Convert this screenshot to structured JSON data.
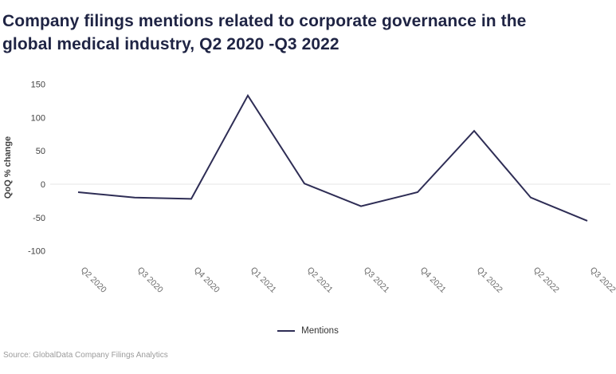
{
  "source": "Source: GlobalData Company Filings Analytics",
  "colors": {
    "line": "#2e2d55",
    "title": "#1f2444",
    "grid": "#e4e4e4",
    "axis_text": "#404040",
    "x_text": "#6b6b6b",
    "source_text": "#9b9b9b",
    "background": "#ffffff"
  },
  "chart_data": {
    "type": "line",
    "title": "Company filings mentions related to corporate governance in the global medical industry, Q2 2020 -Q3 2022",
    "categories": [
      "Q2 2020",
      "Q3 2020",
      "Q4 2020",
      "Q1 2021",
      "Q2 2021",
      "Q3 2021",
      "Q4 2021",
      "Q1 2022",
      "Q2 2022",
      "Q3 2022"
    ],
    "series": [
      {
        "name": "Mentions",
        "values": [
          -12,
          -20,
          -22,
          133,
          1,
          -33,
          -12,
          80,
          -20,
          -55
        ]
      }
    ],
    "xlabel": "",
    "ylabel": "QoQ % change",
    "yticks": [
      150,
      100,
      50,
      0,
      -50,
      -100
    ],
    "ylim": [
      -100,
      150
    ],
    "grid": "zero-line-only",
    "legend_position": "bottom-center"
  }
}
